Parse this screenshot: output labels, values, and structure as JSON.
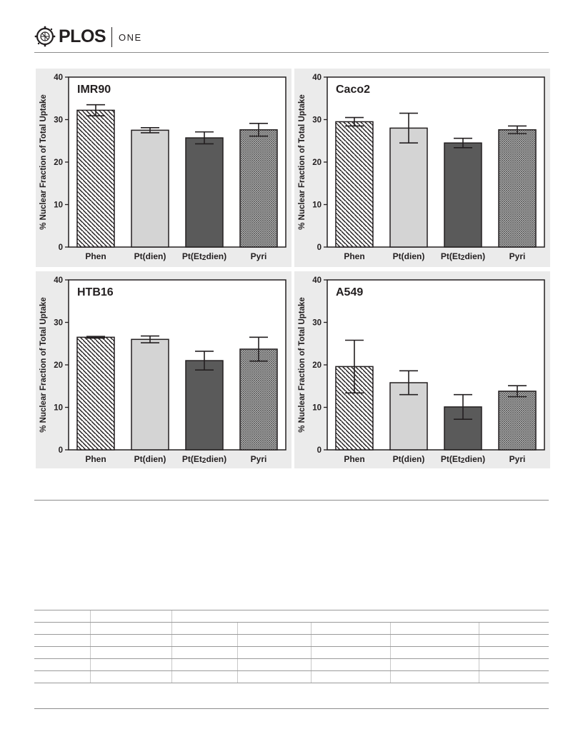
{
  "header": {
    "brand": "PLOS",
    "journal": "ONE",
    "colors": {
      "text": "#231f20",
      "rule": "#8c8c8c"
    }
  },
  "figure": {
    "icon": "plos-logo-icon"
  },
  "chart_data": [
    {
      "type": "bar",
      "title": "IMR90",
      "ylabel": "% Nuclear Fraction of Total Uptake",
      "xlabel": "",
      "ylim": [
        0,
        40
      ],
      "yticks": [
        0,
        10,
        20,
        30,
        40
      ],
      "categories": [
        "Phen",
        "Pt(dien)",
        "Pt(Et2dien)",
        "Pyri"
      ],
      "values": [
        32.2,
        27.5,
        25.7,
        27.6
      ],
      "errors": [
        1.3,
        0.6,
        1.4,
        1.5
      ],
      "fills": [
        "hatch",
        "#d4d4d4",
        "#5a5a5a",
        "crosshatch"
      ]
    },
    {
      "type": "bar",
      "title": "Caco2",
      "ylabel": "% Nuclear Fraction of Total Uptake",
      "xlabel": "",
      "ylim": [
        0,
        40
      ],
      "yticks": [
        0,
        10,
        20,
        30,
        40
      ],
      "categories": [
        "Phen",
        "Pt(dien)",
        "Pt(Et2dien)",
        "Pyri"
      ],
      "values": [
        29.5,
        28.0,
        24.5,
        27.6
      ],
      "errors": [
        1.0,
        3.5,
        1.1,
        0.9
      ],
      "fills": [
        "hatch",
        "#d4d4d4",
        "#5a5a5a",
        "crosshatch"
      ]
    },
    {
      "type": "bar",
      "title": "HTB16",
      "ylabel": "% Nuclear Fraction of Total Uptake",
      "xlabel": "",
      "ylim": [
        0,
        40
      ],
      "yticks": [
        0,
        10,
        20,
        30,
        40
      ],
      "categories": [
        "Phen",
        "Pt(dien)",
        "Pt(Et2dien)",
        "Pyri"
      ],
      "values": [
        26.5,
        26.0,
        21.0,
        23.7
      ],
      "errors": [
        0.2,
        0.8,
        2.2,
        2.8
      ],
      "fills": [
        "hatch",
        "#d4d4d4",
        "#5a5a5a",
        "crosshatch"
      ]
    },
    {
      "type": "bar",
      "title": "A549",
      "ylabel": "% Nuclear Fraction of Total Uptake",
      "xlabel": "",
      "ylim": [
        0,
        40
      ],
      "yticks": [
        0,
        10,
        20,
        30,
        40
      ],
      "categories": [
        "Phen",
        "Pt(dien)",
        "Pt(Et2dien)",
        "Pyri"
      ],
      "values": [
        19.6,
        15.8,
        10.1,
        13.8
      ],
      "errors": [
        6.2,
        2.8,
        2.9,
        1.3
      ],
      "fills": [
        "hatch",
        "#d4d4d4",
        "#5a5a5a",
        "crosshatch"
      ]
    }
  ]
}
